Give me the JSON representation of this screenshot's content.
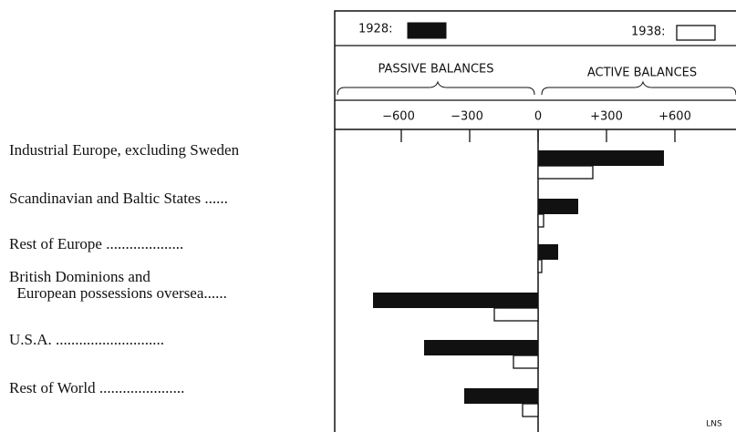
{
  "chart_data": {
    "type": "bar",
    "orientation": "horizontal",
    "legend_title_left": "1928:",
    "legend_title_right": "1938:",
    "left_heading": "PASSIVE BALANCES",
    "right_heading": "ACTIVE BALANCES",
    "note": "LNS",
    "categories": [
      "Industrial Europe, excluding Sweden",
      "Scandinavian and Baltic States ......",
      "Rest of Europe ....................",
      "British Dominions and\n  European possessions oversea......",
      "U.S.A. ............................",
      "Rest of World ......................"
    ],
    "series": [
      {
        "name": "1928",
        "color": "#111111",
        "values": [
          552,
          176,
          88,
          -724,
          -500,
          -324
        ]
      },
      {
        "name": "1938",
        "color": "#ffffff",
        "values": [
          240,
          24,
          16,
          -192,
          -108,
          -68
        ]
      }
    ],
    "xlim": [
      -892,
      868
    ],
    "xticks": [
      {
        "value": -600,
        "label": "−600"
      },
      {
        "value": -300,
        "label": "−300"
      },
      0,
      {
        "value": 300,
        "label": "+300"
      },
      {
        "value": 600,
        "label": "+600"
      }
    ]
  }
}
